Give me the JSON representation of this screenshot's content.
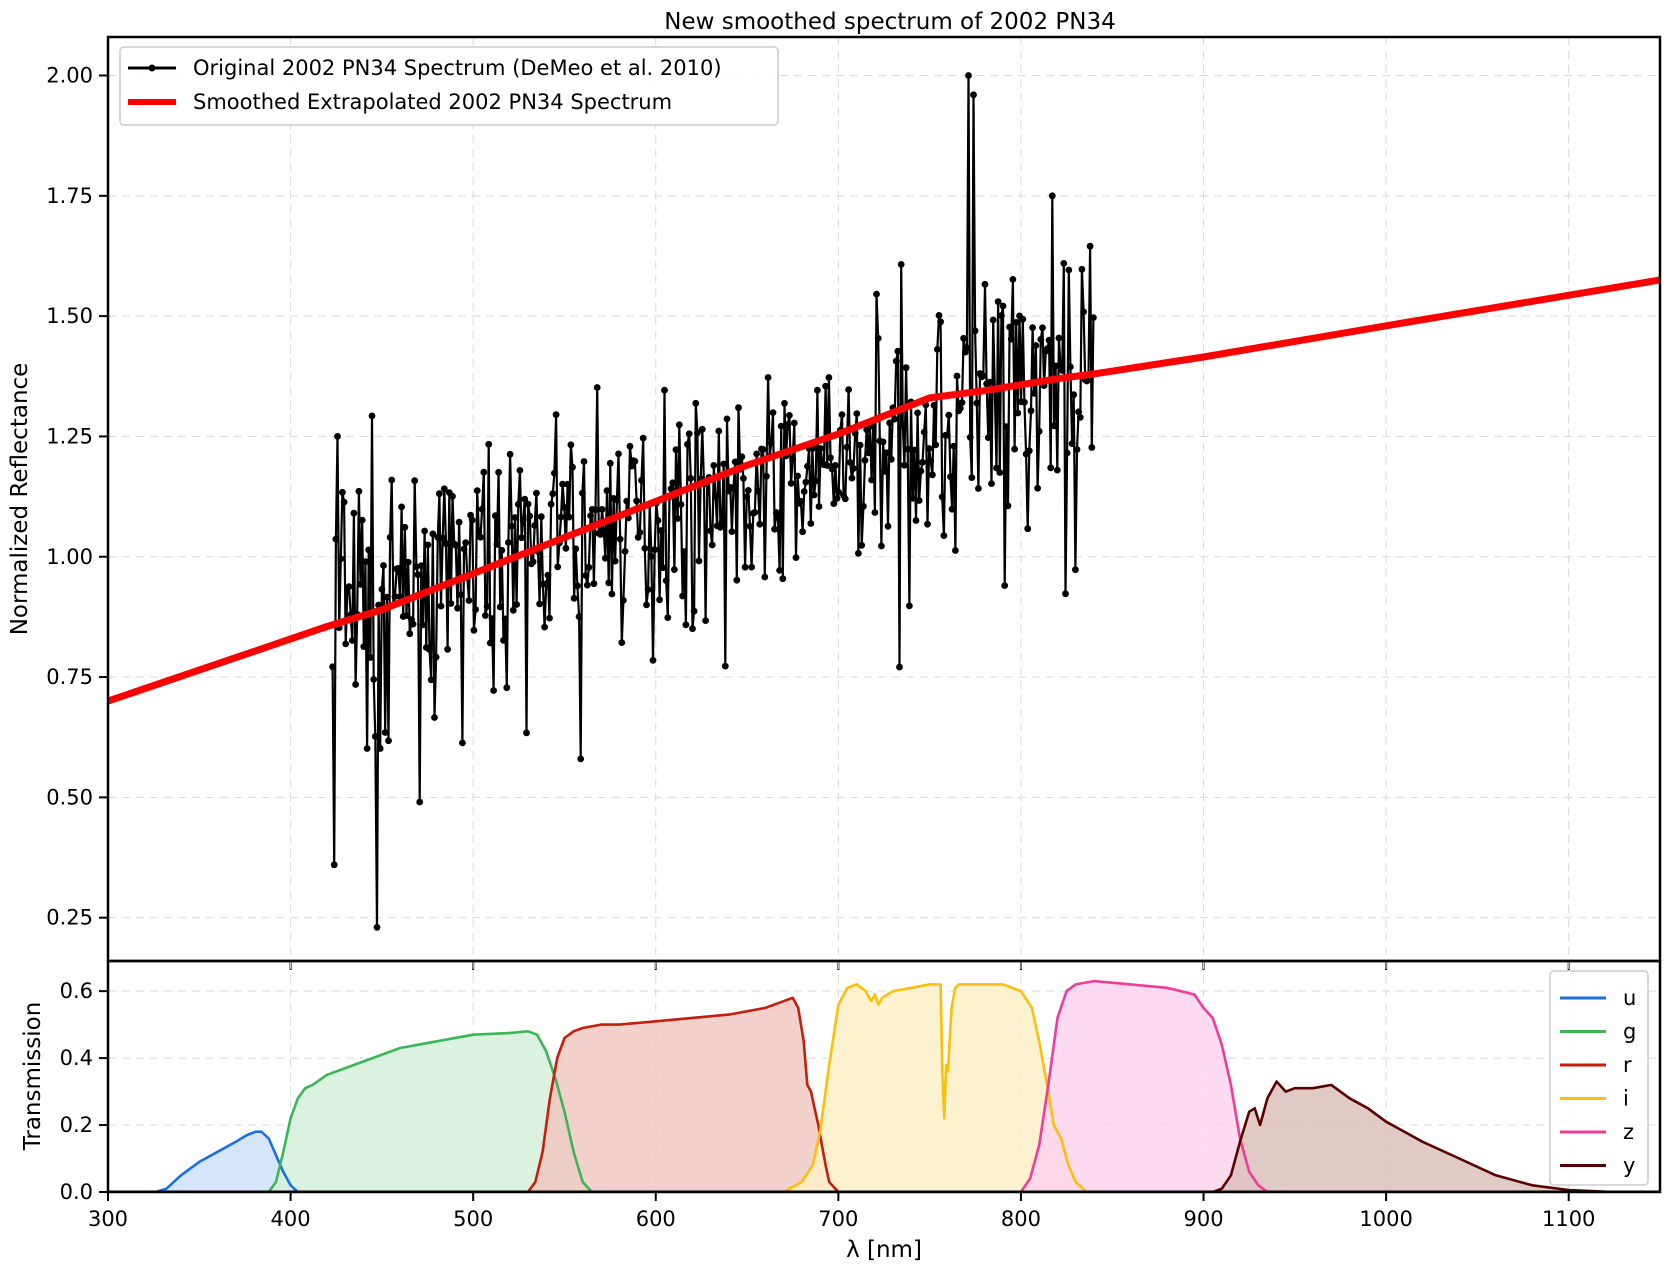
{
  "chart_data": [
    {
      "type": "line",
      "title": "New smoothed spectrum of 2002 PN34",
      "xlabel": "",
      "ylabel": "Normalized Reflectance",
      "xlim": [
        300,
        1150
      ],
      "ylim": [
        0.16,
        2.08
      ],
      "yticks": [
        "0.25",
        "0.50",
        "0.75",
        "1.00",
        "1.25",
        "1.50",
        "1.75",
        "2.00"
      ],
      "grid": true,
      "legend_position": "upper-left",
      "series": [
        {
          "name": "Original 2002 PN34 Spectrum (DeMeo et al. 2010)",
          "color": "#000000",
          "marker": "dot",
          "x_range": [
            423,
            840
          ],
          "x_step": 0.9,
          "noise_seed": 7,
          "trend": {
            "x": [
              423,
              500,
              600,
              700,
              760,
              800,
              840
            ],
            "y": [
              0.87,
              0.97,
              1.09,
              1.18,
              1.3,
              1.32,
              1.36
            ]
          },
          "highlight_points": [
            {
              "x": 424,
              "y": 0.36
            },
            {
              "x": 426,
              "y": 1.25
            },
            {
              "x": 447,
              "y": 0.23
            },
            {
              "x": 559,
              "y": 0.58
            },
            {
              "x": 771,
              "y": 2.0
            },
            {
              "x": 774,
              "y": 1.96
            },
            {
              "x": 817,
              "y": 1.75
            },
            {
              "x": 791,
              "y": 0.94
            }
          ]
        },
        {
          "name": "Smoothed Extrapolated 2002 PN34 Spectrum",
          "color": "#ff0000",
          "x": [
            300,
            420,
            450,
            500,
            550,
            600,
            650,
            700,
            730,
            750,
            780,
            820,
            840,
            900,
            1000,
            1150
          ],
          "y": [
            0.7,
            0.855,
            0.89,
            0.965,
            1.04,
            1.115,
            1.19,
            1.255,
            1.3,
            1.33,
            1.345,
            1.37,
            1.38,
            1.415,
            1.48,
            1.575
          ]
        }
      ]
    },
    {
      "type": "area",
      "title": "",
      "xlabel": "λ [nm]",
      "ylabel": "Transmission",
      "xlim": [
        300,
        1150
      ],
      "ylim": [
        0.0,
        0.69
      ],
      "xticks": [
        "300",
        "400",
        "500",
        "600",
        "700",
        "800",
        "900",
        "1000",
        "1100"
      ],
      "yticks": [
        "0.0",
        "0.2",
        "0.4",
        "0.6"
      ],
      "grid": true,
      "legend_position": "upper-right",
      "series": [
        {
          "name": "u",
          "color": "#1a6fe8",
          "fill": "#cfe0fb",
          "x": [
            300,
            326,
            332,
            340,
            350,
            360,
            370,
            376,
            381,
            384,
            388,
            392,
            396,
            400,
            404
          ],
          "y": [
            0,
            0,
            0.01,
            0.05,
            0.09,
            0.12,
            0.15,
            0.17,
            0.18,
            0.18,
            0.16,
            0.11,
            0.06,
            0.02,
            0
          ]
        },
        {
          "name": "g",
          "color": "#3bb556",
          "fill": "#d6f0dc",
          "x": [
            388,
            392,
            396,
            400,
            404,
            408,
            412,
            420,
            430,
            440,
            460,
            480,
            500,
            520,
            530,
            535,
            540,
            545,
            550,
            555,
            560,
            565
          ],
          "y": [
            0,
            0.03,
            0.12,
            0.22,
            0.28,
            0.31,
            0.32,
            0.35,
            0.37,
            0.39,
            0.43,
            0.45,
            0.47,
            0.475,
            0.48,
            0.47,
            0.42,
            0.34,
            0.24,
            0.12,
            0.03,
            0
          ]
        },
        {
          "name": "r",
          "color": "#c41e0c",
          "fill": "#f0c8c2",
          "x": [
            530,
            534,
            538,
            542,
            546,
            550,
            555,
            560,
            570,
            580,
            600,
            620,
            640,
            660,
            670,
            675,
            678,
            681,
            683,
            685,
            687,
            689,
            691,
            693,
            695,
            700
          ],
          "y": [
            0,
            0.03,
            0.12,
            0.28,
            0.4,
            0.46,
            0.48,
            0.49,
            0.5,
            0.5,
            0.51,
            0.52,
            0.53,
            0.55,
            0.57,
            0.58,
            0.55,
            0.45,
            0.32,
            0.3,
            0.25,
            0.2,
            0.14,
            0.08,
            0.03,
            0
          ]
        },
        {
          "name": "i",
          "color": "#fbbf0c",
          "fill": "#fdf0c8",
          "x": [
            670,
            680,
            686,
            690,
            695,
            700,
            705,
            710,
            715,
            718,
            720,
            722,
            724,
            730,
            740,
            750,
            756,
            757,
            758,
            759,
            760,
            762,
            764,
            766,
            770,
            780,
            790,
            800,
            806,
            810,
            815,
            818,
            822,
            826,
            830,
            834,
            836
          ],
          "y": [
            0,
            0.03,
            0.08,
            0.18,
            0.38,
            0.56,
            0.61,
            0.62,
            0.6,
            0.57,
            0.59,
            0.56,
            0.58,
            0.6,
            0.61,
            0.62,
            0.62,
            0.35,
            0.22,
            0.38,
            0.36,
            0.55,
            0.61,
            0.62,
            0.62,
            0.62,
            0.62,
            0.6,
            0.55,
            0.45,
            0.3,
            0.2,
            0.16,
            0.08,
            0.03,
            0.01,
            0
          ]
        },
        {
          "name": "z",
          "color": "#ee3c9b",
          "fill": "#fbd4ec",
          "x": [
            800,
            805,
            810,
            815,
            820,
            825,
            830,
            840,
            860,
            880,
            895,
            900,
            905,
            910,
            915,
            920,
            925,
            930,
            935
          ],
          "y": [
            0,
            0.04,
            0.14,
            0.32,
            0.52,
            0.6,
            0.62,
            0.63,
            0.62,
            0.61,
            0.59,
            0.55,
            0.52,
            0.44,
            0.32,
            0.16,
            0.06,
            0.02,
            0
          ]
        },
        {
          "name": "y",
          "color": "#5a0000",
          "fill": "#dcc0bc",
          "x": [
            905,
            910,
            915,
            920,
            925,
            928,
            931,
            935,
            940,
            945,
            950,
            960,
            970,
            980,
            990,
            1000,
            1020,
            1040,
            1060,
            1080,
            1100,
            1120,
            1140
          ],
          "y": [
            0,
            0.01,
            0.05,
            0.15,
            0.24,
            0.25,
            0.2,
            0.28,
            0.33,
            0.3,
            0.31,
            0.31,
            0.32,
            0.28,
            0.25,
            0.21,
            0.15,
            0.1,
            0.05,
            0.02,
            0.006,
            0.001,
            0
          ]
        }
      ]
    }
  ]
}
